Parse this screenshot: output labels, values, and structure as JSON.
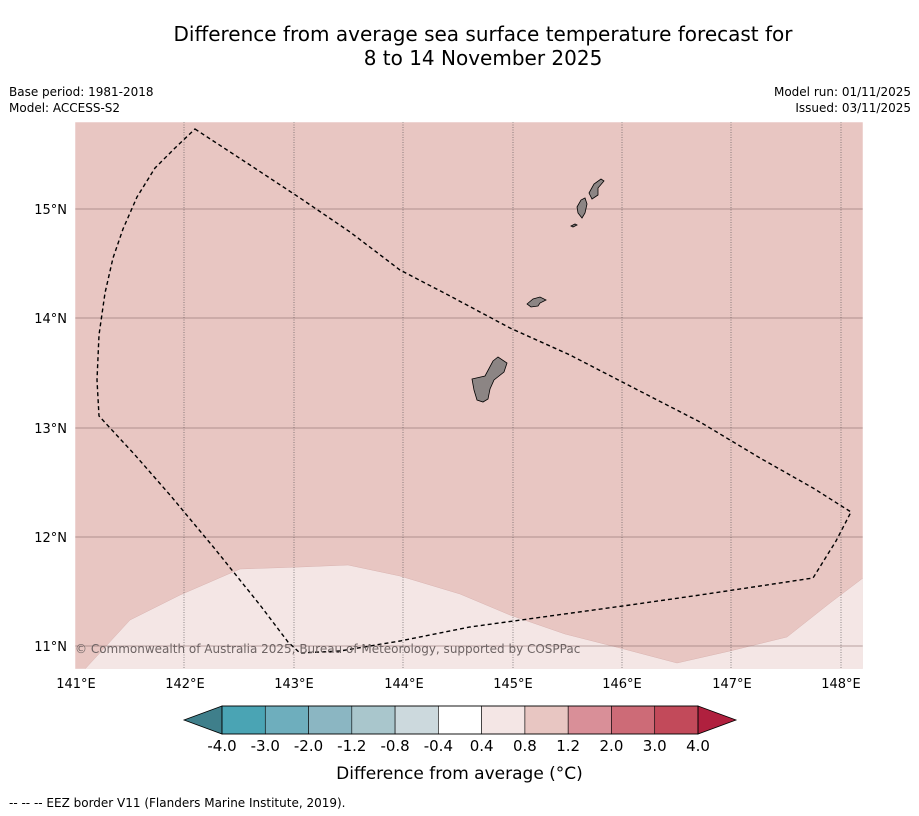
{
  "title": {
    "line1": "Difference from average sea surface temperature forecast for",
    "line2": "8 to 14 November 2025"
  },
  "meta_left": {
    "base_period": "Base period: 1981-2018",
    "model": "Model: ACCESS-S2"
  },
  "meta_right": {
    "model_run": "Model run: 01/11/2025",
    "issued": "Issued: 03/11/2025"
  },
  "map": {
    "lon_labels": [
      "141°E",
      "142°E",
      "143°E",
      "144°E",
      "145°E",
      "146°E",
      "147°E",
      "148°E"
    ],
    "lat_labels": [
      "15°N",
      "14°N",
      "13°N",
      "12°N",
      "11°N"
    ],
    "lon_range": [
      141.0,
      148.2
    ],
    "lat_range": [
      10.8,
      15.75
    ],
    "copyright": "© Commonwealth of Australia 2025, Bureau of Meteorology, supported by COSPPac",
    "colors": {
      "anomaly_0_8_to_1_2": "#e8c6c2",
      "anomaly_0_4_to_0_8": "#f4e6e5",
      "land": "#8c8584",
      "eez_border": "#000000"
    }
  },
  "colorbar": {
    "tick_labels": [
      "-4.0",
      "-3.0",
      "-2.0",
      "-1.2",
      "-0.8",
      "-0.4",
      "0.4",
      "0.8",
      "1.2",
      "2.0",
      "3.0",
      "4.0"
    ],
    "colors": [
      "#3f7f8b",
      "#4aa4b4",
      "#6eaebd",
      "#8bb6c2",
      "#a9c6cc",
      "#ccd9dd",
      "#ffffff",
      "#f4e6e5",
      "#e8c6c2",
      "#d98f98",
      "#cd6b77",
      "#c24a5a",
      "#b0203e"
    ],
    "label": "Difference from average (°C)"
  },
  "footnote": "--  --  -- EEZ border V11 (Flanders Marine Institute, 2019)."
}
